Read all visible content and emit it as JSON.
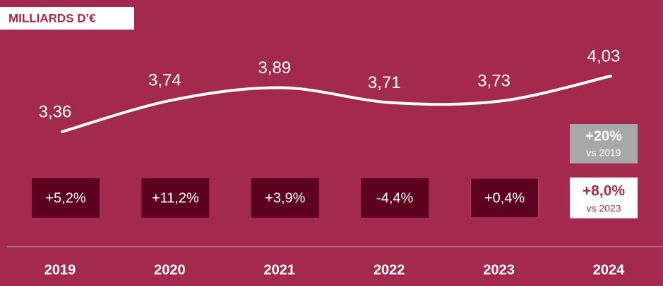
{
  "chart_data": {
    "type": "line",
    "title": "MILLIARDS D’€",
    "categories": [
      "2019",
      "2020",
      "2021",
      "2022",
      "2023",
      "2024"
    ],
    "values": [
      3.36,
      3.74,
      3.89,
      3.71,
      3.73,
      4.03
    ],
    "value_labels": [
      "3,36",
      "3,74",
      "3,89",
      "3,71",
      "3,73",
      "4,03"
    ],
    "color": "#ffffff",
    "growth_labels": [
      "+5,2%",
      "+11,2%",
      "+3,9%",
      "-4,4%",
      "+0,4%",
      "+8,0%"
    ],
    "growth_note": "vs 2023",
    "highlight": {
      "text": "+20%",
      "note": "vs 2019"
    }
  }
}
